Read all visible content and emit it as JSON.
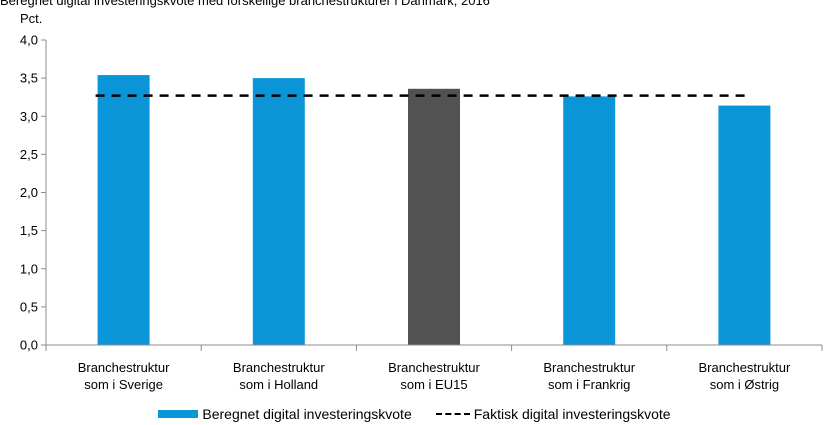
{
  "header": {
    "title": "Beregnet digital investeringskvote med forskellige branchestrukturer i Danmark, 2016"
  },
  "colors": {
    "bar": "#0a95d8",
    "highlight": "#525252",
    "reference_line": "#000000",
    "axis": "#8c8c8c"
  },
  "chart_data": {
    "type": "bar",
    "ylabel": "Pct.",
    "ylim": [
      0,
      4.0
    ],
    "yticks": [
      "0,0",
      "0,5",
      "1,0",
      "1,5",
      "2,0",
      "2,5",
      "3,0",
      "3,5",
      "4,0"
    ],
    "categories": [
      [
        "Branchestruktur",
        "som i Sverige"
      ],
      [
        "Branchestruktur",
        "som i Holland"
      ],
      [
        "Branchestruktur",
        "som i EU15"
      ],
      [
        "Branchestruktur",
        "som i Frankrig"
      ],
      [
        "Branchestruktur",
        "som i Østrig"
      ]
    ],
    "series": [
      {
        "name": "Beregnet digital investeringskvote",
        "values": [
          3.54,
          3.5,
          3.36,
          3.26,
          3.14
        ],
        "highlight_index": 2
      }
    ],
    "reference_line": {
      "name": "Faktisk digital investeringskvote",
      "value": 3.27,
      "style": "dashed"
    },
    "grid": false,
    "legend": "bottom"
  }
}
